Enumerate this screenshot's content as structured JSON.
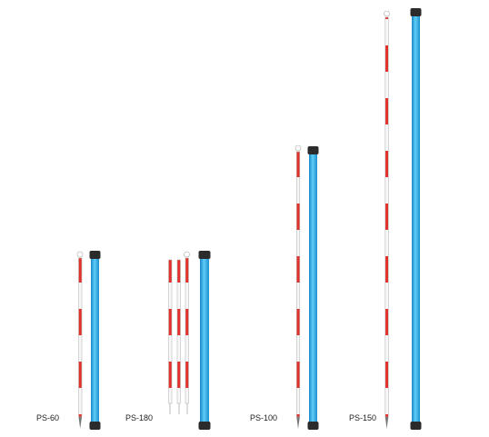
{
  "products": [
    {
      "label": "PS-60"
    },
    {
      "label": "PS-180"
    },
    {
      "label": "PS-100"
    },
    {
      "label": "PS-150"
    }
  ]
}
